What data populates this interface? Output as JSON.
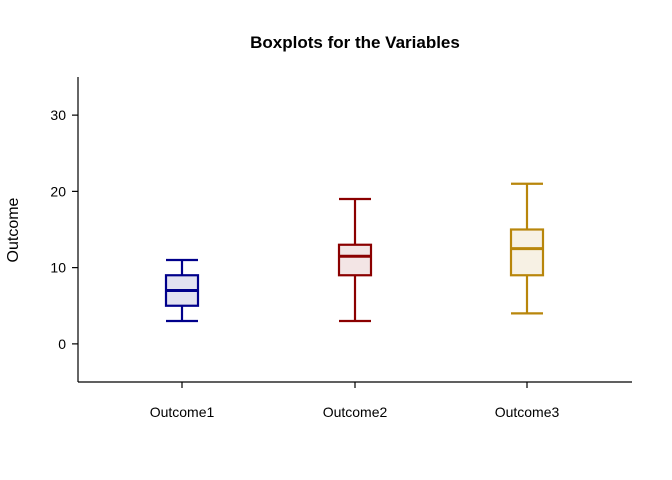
{
  "chart_data": {
    "type": "boxplot",
    "title": "Boxplots for the Variables",
    "xlabel": "",
    "ylabel": "Outcome",
    "ylim": [
      -5,
      35
    ],
    "yticks": [
      0,
      10,
      20,
      30
    ],
    "grid": false,
    "legend": "none",
    "categories": [
      "Outcome1",
      "Outcome2",
      "Outcome3"
    ],
    "boxes": [
      {
        "category": "Outcome1",
        "min": 3,
        "q1": 5,
        "median": 7,
        "q3": 9,
        "max": 11,
        "stroke": "#00008b",
        "fill": "#e2e2f1"
      },
      {
        "category": "Outcome2",
        "min": 3,
        "q1": 9,
        "median": 11.5,
        "q3": 13,
        "max": 19,
        "stroke": "#8b0000",
        "fill": "#f3e5e5"
      },
      {
        "category": "Outcome3",
        "min": 4,
        "q1": 9,
        "median": 12.5,
        "q3": 15,
        "max": 21,
        "stroke": "#b8860b",
        "fill": "#f7f1e4"
      }
    ]
  }
}
